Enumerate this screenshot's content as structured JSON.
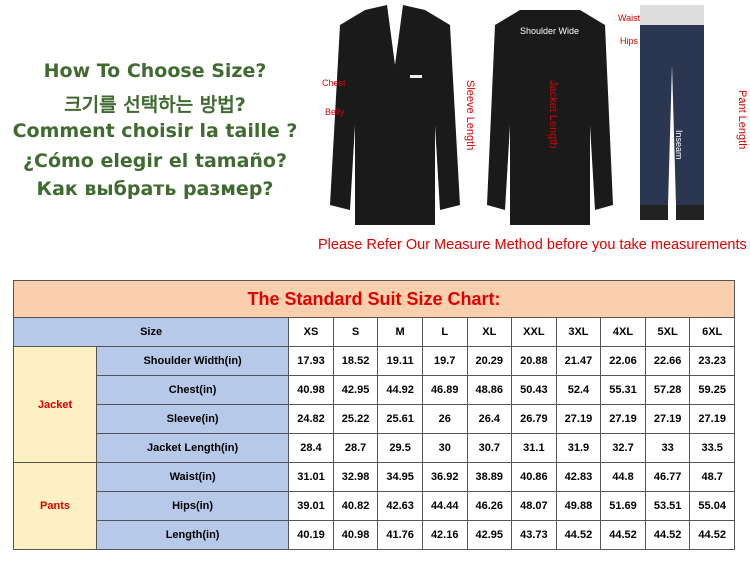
{
  "headings": [
    "How To Choose Size?",
    "크기를 선택하는 방법?",
    "Comment choisir la taille ?",
    "¿Cómo elegir el tamaño?",
    "Как выбрать размер?"
  ],
  "measure_labels": {
    "chest": "Chest",
    "belly": "Belly",
    "sleeve": "Sleeve Length",
    "shoulder": "Shoulder Wide",
    "jacket": "Jacket Length",
    "waist": "Waist",
    "hips": "Hips",
    "pant": "Pant Length",
    "inseam": "Inseam"
  },
  "caption": "Please Refer Our Measure Method before you take measurements",
  "chart_data": {
    "type": "table",
    "title": "The Standard Suit Size Chart:",
    "size_header": "Size",
    "columns": [
      "XS",
      "S",
      "M",
      "L",
      "XL",
      "XXL",
      "3XL",
      "4XL",
      "5XL",
      "6XL"
    ],
    "groups": [
      {
        "name": "Jacket",
        "rows": [
          {
            "label": "Shoulder Width(in)",
            "values": [
              "17.93",
              "18.52",
              "19.11",
              "19.7",
              "20.29",
              "20.88",
              "21.47",
              "22.06",
              "22.66",
              "23.23"
            ]
          },
          {
            "label": "Chest(in)",
            "values": [
              "40.98",
              "42.95",
              "44.92",
              "46.89",
              "48.86",
              "50.43",
              "52.4",
              "55.31",
              "57.28",
              "59.25"
            ]
          },
          {
            "label": "Sleeve(in)",
            "values": [
              "24.82",
              "25.22",
              "25.61",
              "26",
              "26.4",
              "26.79",
              "27.19",
              "27.19",
              "27.19",
              "27.19"
            ]
          },
          {
            "label": "Jacket Length(in)",
            "values": [
              "28.4",
              "28.7",
              "29.5",
              "30",
              "30.7",
              "31.1",
              "31.9",
              "32.7",
              "33",
              "33.5"
            ]
          }
        ]
      },
      {
        "name": "Pants",
        "rows": [
          {
            "label": "Waist(in)",
            "values": [
              "31.01",
              "32.98",
              "34.95",
              "36.92",
              "38.89",
              "40.86",
              "42.83",
              "44.8",
              "46.77",
              "48.7"
            ]
          },
          {
            "label": "Hips(in)",
            "values": [
              "39.01",
              "40.82",
              "42.63",
              "44.44",
              "46.26",
              "48.07",
              "49.88",
              "51.69",
              "53.51",
              "55.04"
            ]
          },
          {
            "label": "Length(in)",
            "values": [
              "40.19",
              "40.98",
              "41.76",
              "42.16",
              "42.95",
              "43.73",
              "44.52",
              "44.52",
              "44.52",
              "44.52"
            ]
          }
        ]
      }
    ]
  }
}
